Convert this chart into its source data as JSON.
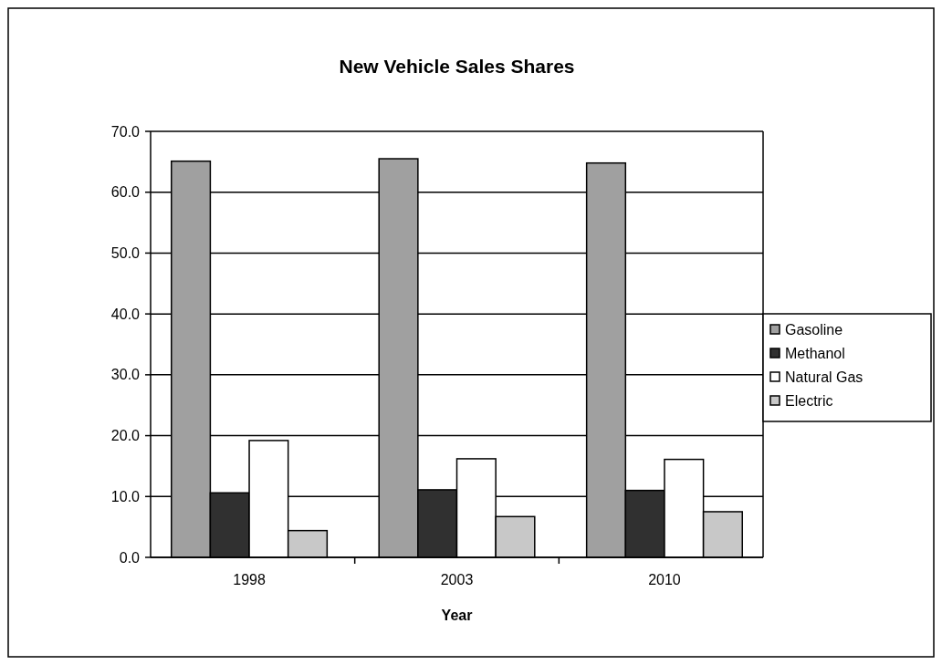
{
  "chart_data": {
    "type": "bar",
    "title": "New Vehicle Sales Shares",
    "xlabel": "Year",
    "categories": [
      "1998",
      "2003",
      "2010"
    ],
    "series": [
      {
        "name": "Gasoline",
        "color": "#a0a0a0",
        "values": [
          65.1,
          65.5,
          64.8
        ]
      },
      {
        "name": "Methanol",
        "color": "#303030",
        "values": [
          10.6,
          11.1,
          11.0
        ]
      },
      {
        "name": "Natural Gas",
        "color": "#ffffff",
        "values": [
          19.2,
          16.2,
          16.1
        ]
      },
      {
        "name": "Electric",
        "color": "#c8c8c8",
        "values": [
          4.4,
          6.7,
          7.5
        ]
      }
    ],
    "ylim": [
      0,
      70
    ],
    "yticks": [
      {
        "value": 0,
        "label": "0.0"
      },
      {
        "value": 10,
        "label": "10.0"
      },
      {
        "value": 20,
        "label": "20.0"
      },
      {
        "value": 30,
        "label": "30.0"
      },
      {
        "value": 40,
        "label": "40.0"
      },
      {
        "value": 50,
        "label": "50.0"
      },
      {
        "value": 60,
        "label": "60.0"
      },
      {
        "value": 70,
        "label": "70.0"
      }
    ],
    "grid": "y",
    "legend": "right"
  }
}
